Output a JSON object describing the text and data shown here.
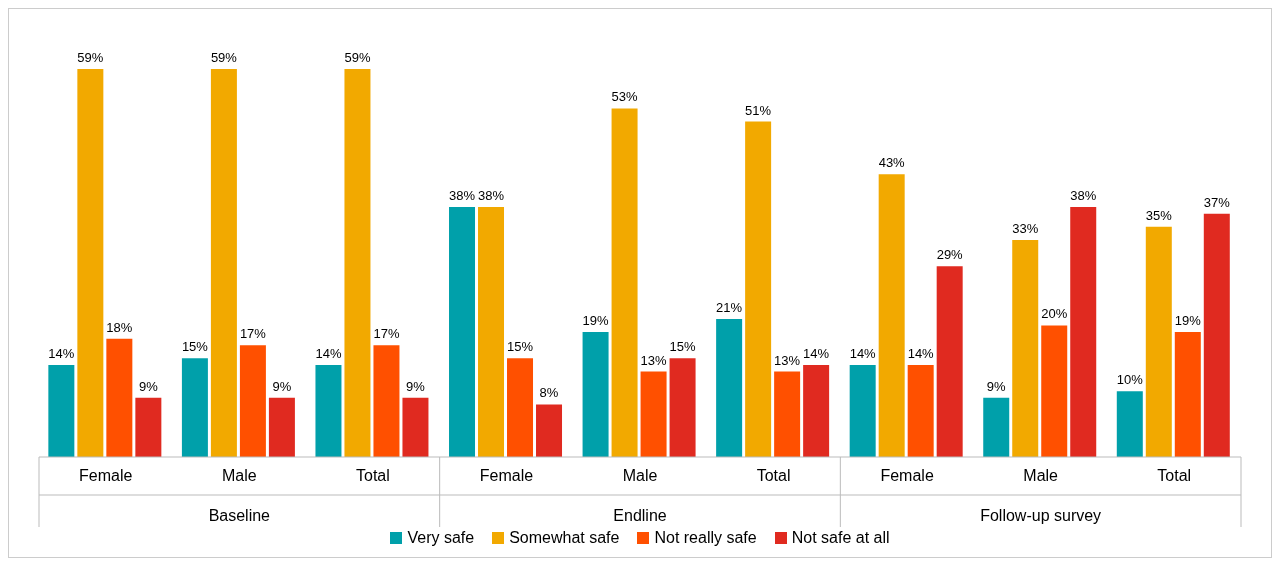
{
  "chart_data": {
    "type": "bar",
    "categories": [
      "Female",
      "Male",
      "Total",
      "Female",
      "Male",
      "Total",
      "Female",
      "Male",
      "Total"
    ],
    "annotations": [
      "Baseline",
      "Endline",
      "Follow-up survey"
    ],
    "series": [
      {
        "name": "Very safe",
        "color": "#00a0aa",
        "values": [
          14,
          15,
          14,
          38,
          19,
          21,
          14,
          9,
          10
        ],
        "value_labels": [
          "14%",
          "15%",
          "14%",
          "38%",
          "19%",
          "21%",
          "14%",
          "9%",
          "10%"
        ]
      },
      {
        "name": "Somewhat safe",
        "color": "#f2a900",
        "values": [
          59,
          59,
          59,
          38,
          53,
          51,
          43,
          33,
          35
        ],
        "value_labels": [
          "59%",
          "59%",
          "59%",
          "38%",
          "53%",
          "51%",
          "43%",
          "33%",
          "35%"
        ]
      },
      {
        "name": "Not really safe",
        "color": "#ff5000",
        "values": [
          18,
          17,
          17,
          15,
          13,
          13,
          14,
          20,
          19
        ],
        "value_labels": [
          "18%",
          "17%",
          "17%",
          "15%",
          "13%",
          "13%",
          "14%",
          "20%",
          "19%"
        ]
      },
      {
        "name": "Not safe at all",
        "color": "#e02a20",
        "values": [
          9,
          9,
          9,
          8,
          15,
          14,
          29,
          38,
          37
        ],
        "value_labels": [
          "9%",
          "9%",
          "9%",
          "8%",
          "15%",
          "14%",
          "29%",
          "38%",
          "37%"
        ]
      }
    ],
    "grid": false,
    "legend": "bottom"
  }
}
